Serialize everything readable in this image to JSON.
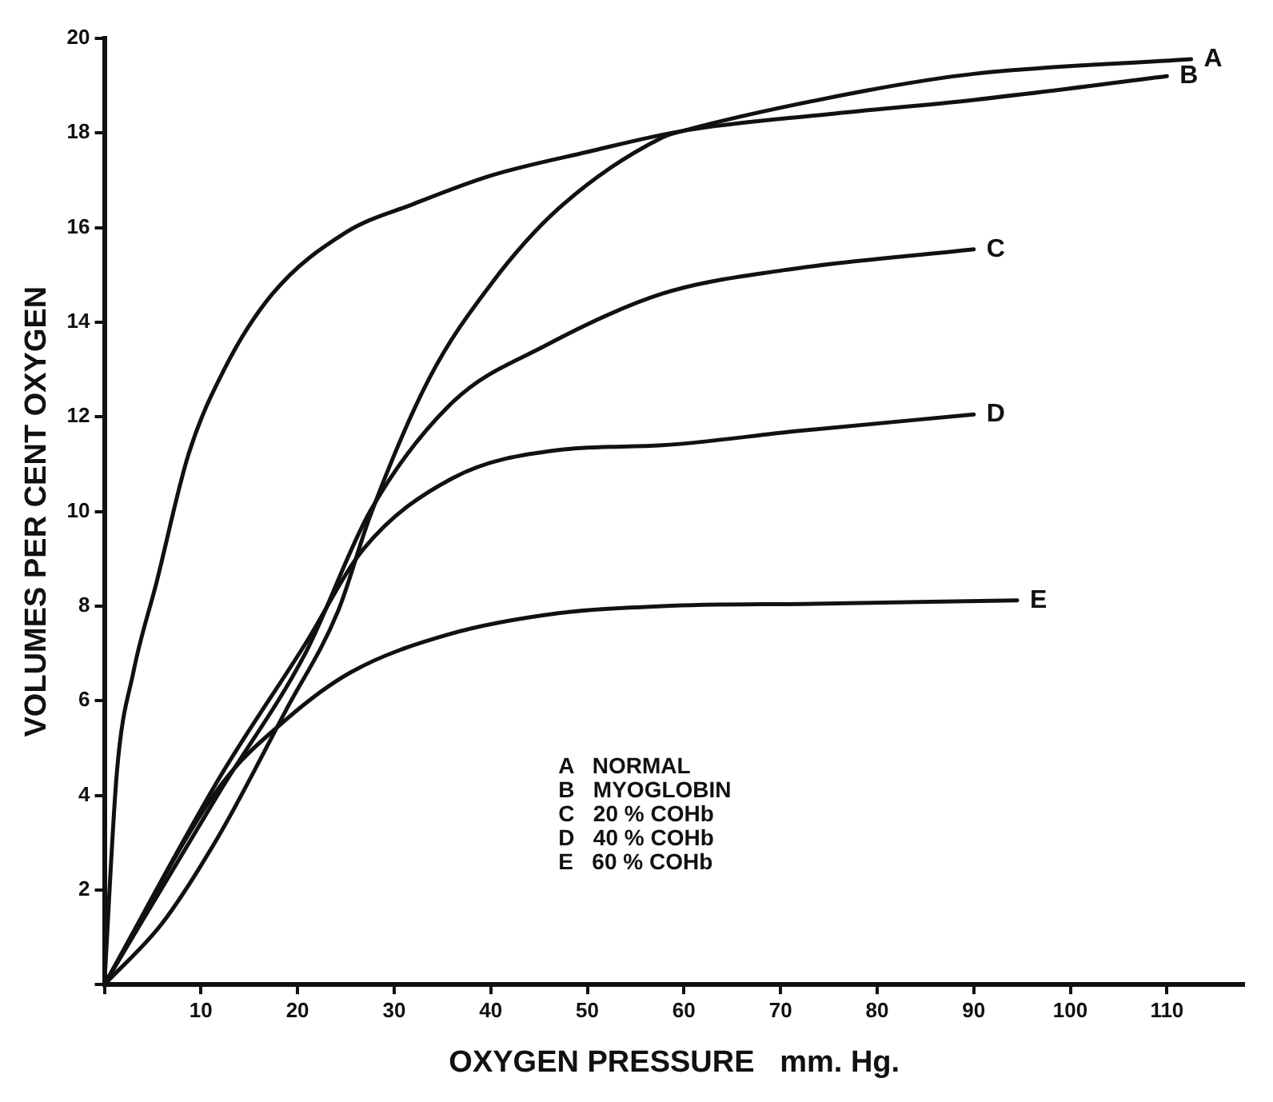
{
  "chart_data": {
    "type": "line",
    "xlabel": "OXYGEN PRESSURE   mm. Hg.",
    "ylabel": "VOLUMES PER CENT OXYGEN",
    "xlim": [
      0,
      118
    ],
    "xticks": [
      {
        "value": 0,
        "label": null
      },
      10,
      20,
      30,
      40,
      50,
      60,
      70,
      80,
      90,
      100,
      110
    ],
    "ylim": [
      0,
      20
    ],
    "yticks": [
      {
        "value": 0,
        "label": null
      },
      2,
      4,
      6,
      8,
      10,
      12,
      14,
      16,
      18,
      20
    ],
    "grid": false,
    "legend": false,
    "marker": "none",
    "line_style": "solid",
    "series": [
      {
        "color": "#111111",
        "x": [
          0,
          6,
          12,
          18.8,
          24.2,
          27.5,
          33.6,
          40,
          47,
          57.7,
          60,
          79,
          90,
          112.5
        ],
        "values": [
          0,
          1.3,
          3.2,
          5.8,
          7.9,
          9.9,
          12.8,
          14.8,
          16.4,
          17.9,
          18.05,
          18.9,
          19.25,
          19.56
        ]
      },
      {
        "color": "#111111",
        "x": [
          0,
          1.3,
          3,
          5.4,
          8.7,
          12.4,
          17.4,
          25,
          32,
          40,
          50,
          60,
          75,
          90,
          110
        ],
        "values": [
          0,
          4.5,
          6.6,
          8.5,
          11.2,
          13,
          14.6,
          15.9,
          16.5,
          17.1,
          17.6,
          18.05,
          18.4,
          18.7,
          19.2
        ]
      },
      {
        "color": "#111111",
        "x": [
          0,
          12,
          20.8,
          27.5,
          36,
          45.6,
          57.7,
          70.3,
          90
        ],
        "values": [
          0,
          4.1,
          7,
          10,
          12.3,
          13.5,
          14.6,
          15.1,
          15.54
        ]
      },
      {
        "color": "#111111",
        "x": [
          0,
          12,
          20.8,
          26.8,
          36,
          47,
          57.7,
          71.7,
          90
        ],
        "values": [
          0,
          4.4,
          7.2,
          9.2,
          10.7,
          11.3,
          11.4,
          11.7,
          12.05
        ]
      },
      {
        "color": "#111111",
        "x": [
          0,
          12,
          18.8,
          25.5,
          35.6,
          47,
          57.7,
          73.5,
          94.5
        ],
        "values": [
          0,
          4.2,
          5.6,
          6.6,
          7.4,
          7.85,
          8,
          8.05,
          8.12
        ]
      }
    ],
    "annotations": [
      {
        "text": "A",
        "x": 112.5,
        "y": 19.56
      },
      {
        "text": "B",
        "x": 110,
        "y": 19.2
      },
      {
        "text": "C",
        "x": 90,
        "y": 15.54
      },
      {
        "text": "D",
        "x": 90,
        "y": 12.05
      },
      {
        "text": "E",
        "x": 94.5,
        "y": 8.12
      },
      "A   NORMAL",
      "B   MYOGLOBIN",
      "C   20 % COHb",
      "D   40 % COHb",
      "E   60 % COHb"
    ]
  }
}
